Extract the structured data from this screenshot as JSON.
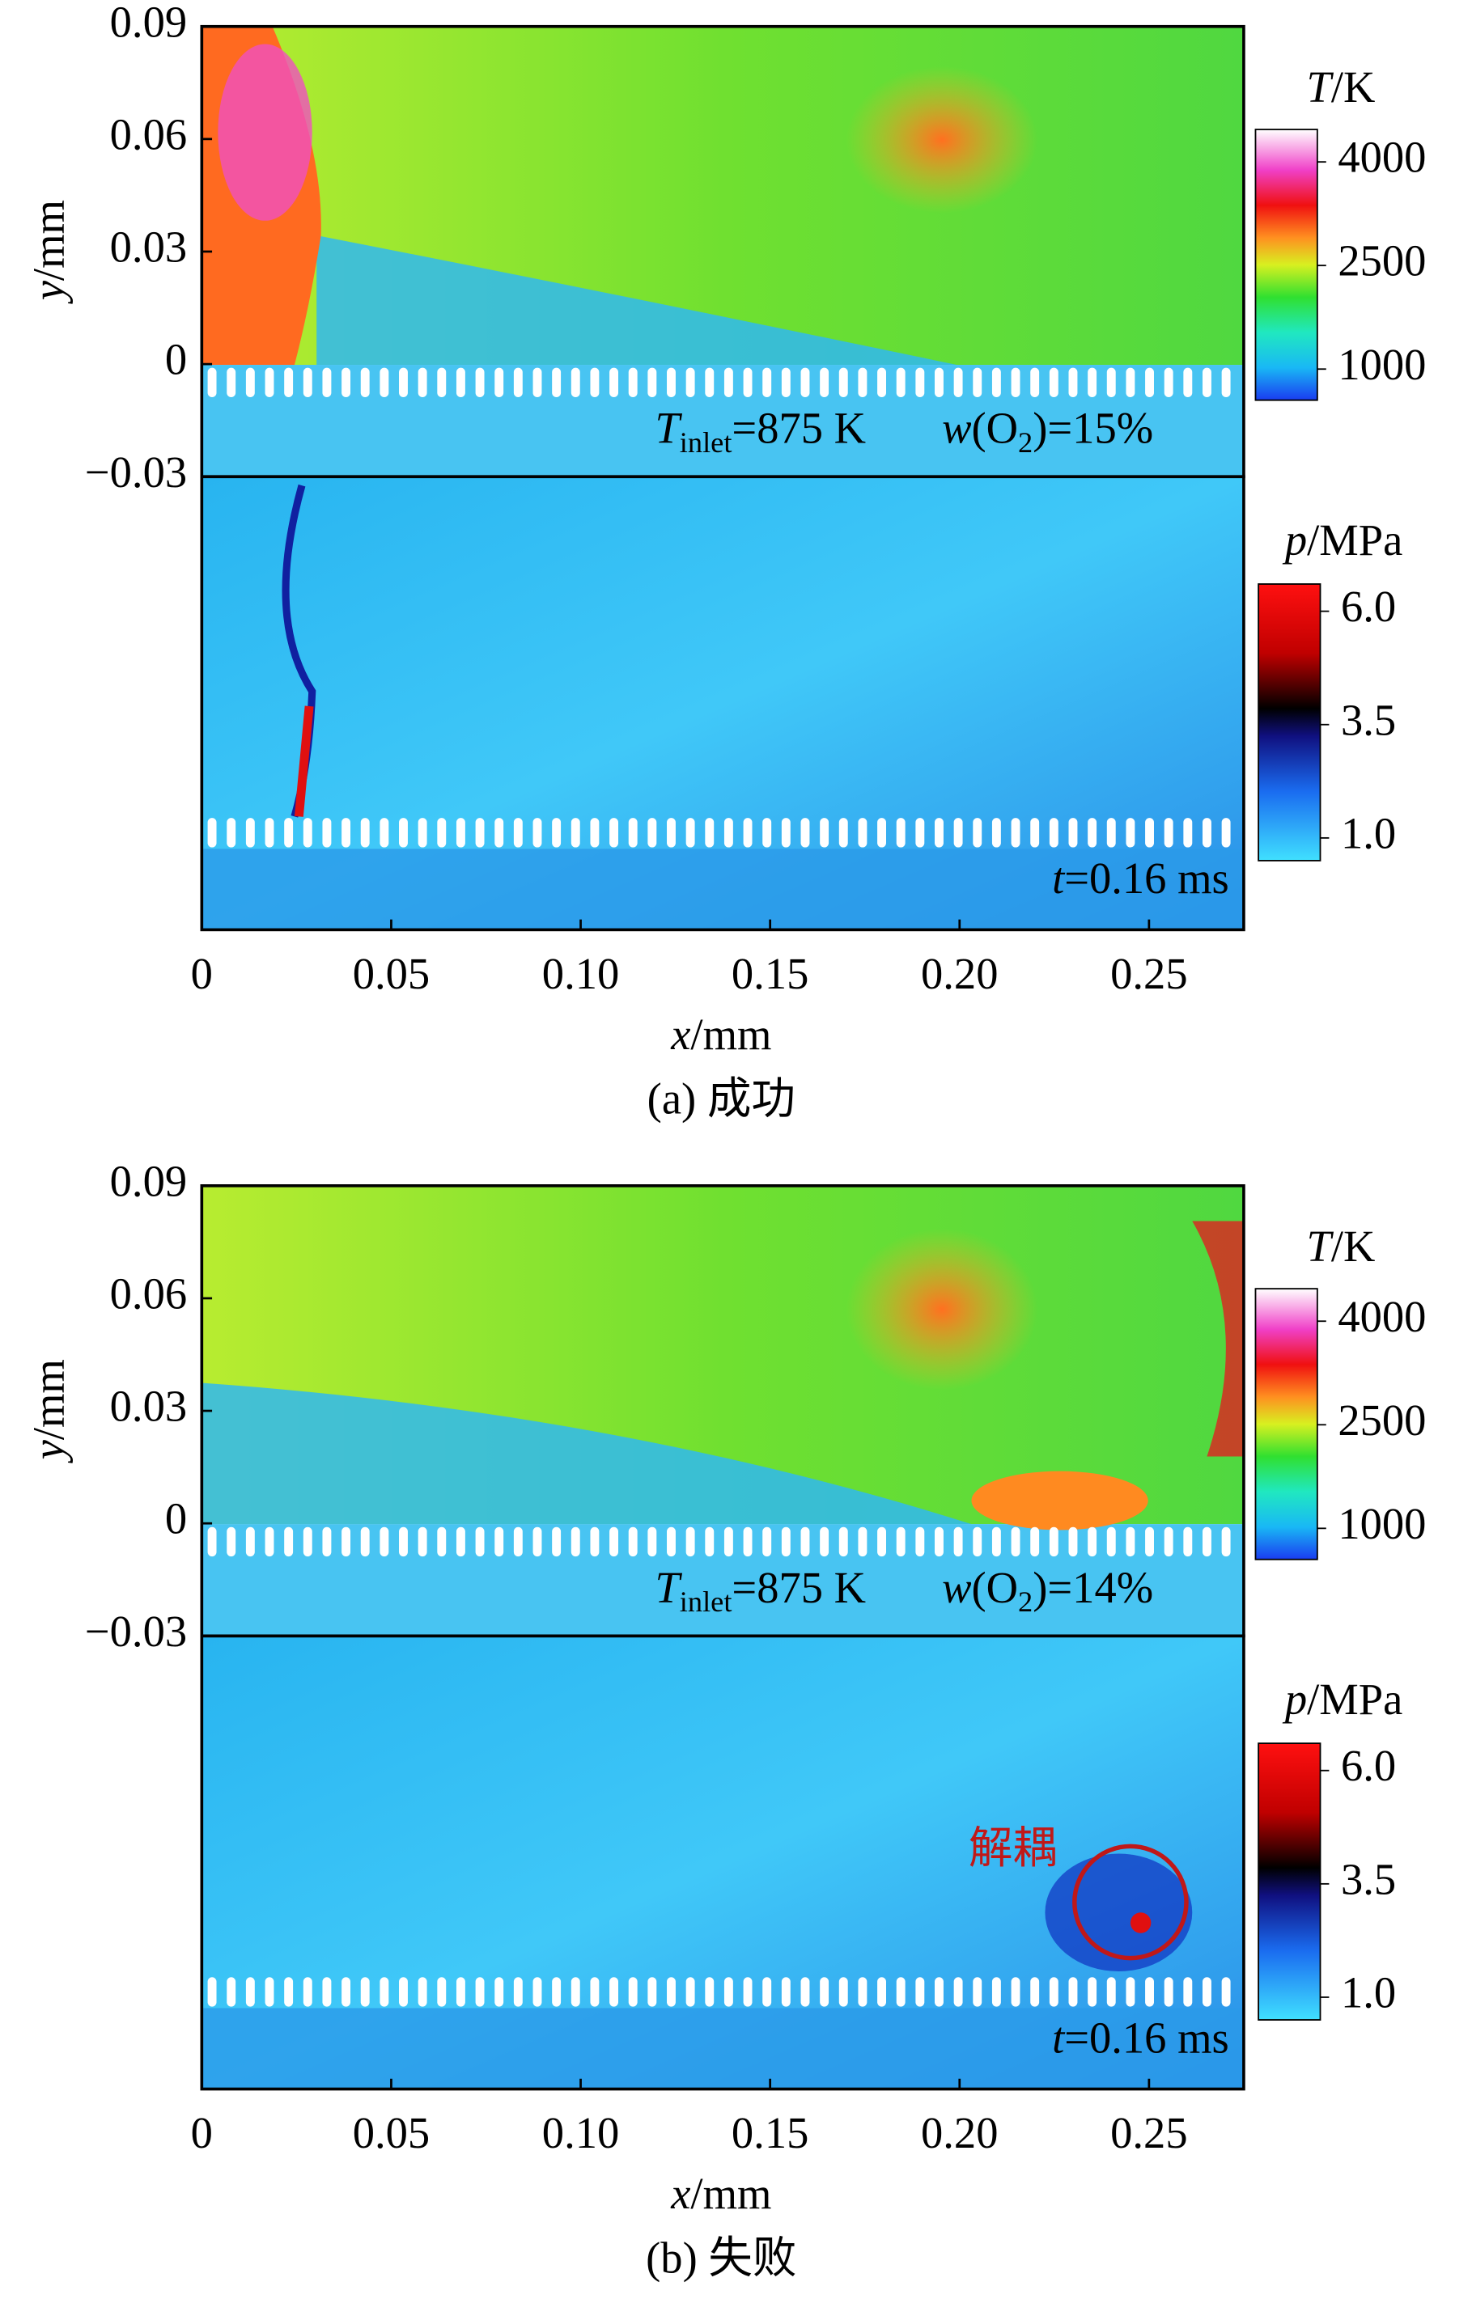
{
  "chart_data": [
    {
      "type": "contour",
      "caption": "(a) 成功",
      "xlabel": {
        "symbol": "x",
        "unit": "/mm"
      },
      "ylabel": {
        "symbol": "y",
        "unit": "/mm"
      },
      "xlim": [
        0,
        0.275
      ],
      "xticks": [
        0,
        0.05,
        {
          "value": 0.1,
          "label": "0.10"
        },
        0.15,
        {
          "value": 0.2,
          "label": "0.20"
        },
        0.25
      ],
      "ylim": [
        -0.03,
        0.09
      ],
      "yticks": [
        0.09,
        0.06,
        0.03,
        0,
        {
          "value": -0.03,
          "label": "−0.03"
        }
      ],
      "temperature": {
        "colorbar": {
          "symbol": "T",
          "unit": "/K",
          "lim": [
            550,
            4470
          ],
          "ticks": [
            1000,
            2500,
            4000
          ]
        },
        "inlet": {
          "symbol": "T",
          "subscript": "inlet",
          "text": "=875 K"
        },
        "oxygen": {
          "symbol": "w",
          "text": "(O",
          "subscript": "2",
          "suffix": ")=15%"
        }
      },
      "pressure": {
        "colorbar": {
          "symbol": "p",
          "unit": "/MPa",
          "lim": [
            0.5,
            6.6
          ],
          "ticks": [
            {
              "value": 1,
              "label": "1.0"
            },
            3.5,
            {
              "value": 6,
              "label": "6.0"
            }
          ]
        },
        "time": {
          "symbol": "t",
          "text": "=0.16 ms"
        }
      }
    },
    {
      "type": "contour",
      "caption": "(b) 失败",
      "xlabel": {
        "symbol": "x",
        "unit": "/mm"
      },
      "ylabel": {
        "symbol": "y",
        "unit": "/mm"
      },
      "xlim": [
        0,
        0.275
      ],
      "xticks": [
        0,
        0.05,
        {
          "value": 0.1,
          "label": "0.10"
        },
        0.15,
        {
          "value": 0.2,
          "label": "0.20"
        },
        0.25
      ],
      "ylim": [
        -0.03,
        0.09
      ],
      "yticks": [
        0.09,
        0.06,
        0.03,
        0,
        {
          "value": -0.03,
          "label": "−0.03"
        }
      ],
      "temperature": {
        "colorbar": {
          "symbol": "T",
          "unit": "/K",
          "lim": [
            550,
            4470
          ],
          "ticks": [
            1000,
            2500,
            4000
          ]
        },
        "inlet": {
          "symbol": "T",
          "subscript": "inlet",
          "text": "=875 K"
        },
        "oxygen": {
          "symbol": "w",
          "text": "(O",
          "subscript": "2",
          "suffix": ")=14%"
        }
      },
      "pressure": {
        "colorbar": {
          "symbol": "p",
          "unit": "/MPa",
          "lim": [
            0.5,
            6.6
          ],
          "ticks": [
            {
              "value": 1,
              "label": "1.0"
            },
            3.5,
            {
              "value": 6,
              "label": "6.0"
            }
          ]
        },
        "time": {
          "symbol": "t",
          "text": "=0.16 ms"
        },
        "callout": "解耦"
      }
    }
  ]
}
